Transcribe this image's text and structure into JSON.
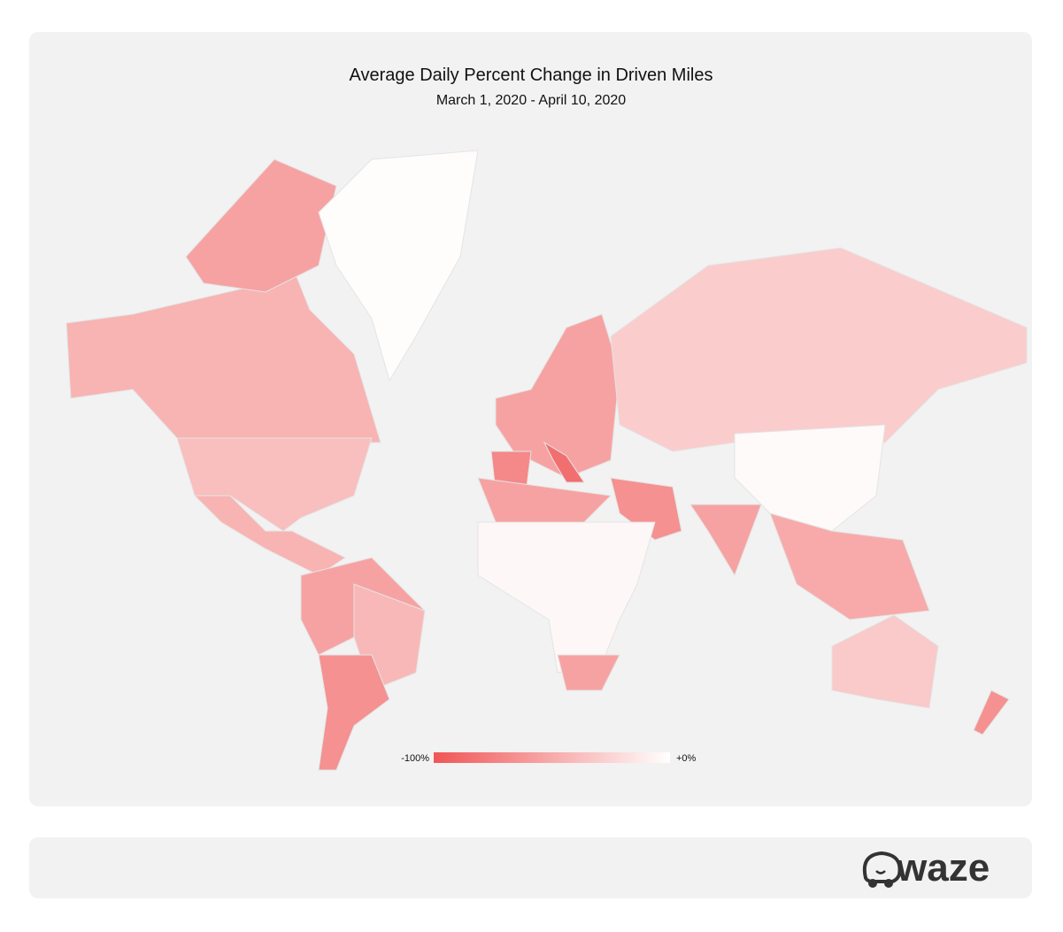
{
  "title": "Average Daily Percent Change in Driven Miles",
  "subtitle": "March 1, 2020 - April 10, 2020",
  "legend": {
    "min": {
      "value": -100,
      "label": "-100%"
    },
    "max": {
      "value": 0,
      "label": "+0%"
    },
    "colors": [
      "#f05555",
      "#ffffff"
    ]
  },
  "regions": {
    "values": [
      -45,
      -55,
      -2,
      -38,
      -45,
      -55,
      -42,
      -65,
      -55,
      -70,
      -85,
      -30,
      -65,
      -55,
      -3,
      -50,
      -55,
      -5,
      -55,
      -32,
      -65
    ]
  },
  "logo": "waze"
}
